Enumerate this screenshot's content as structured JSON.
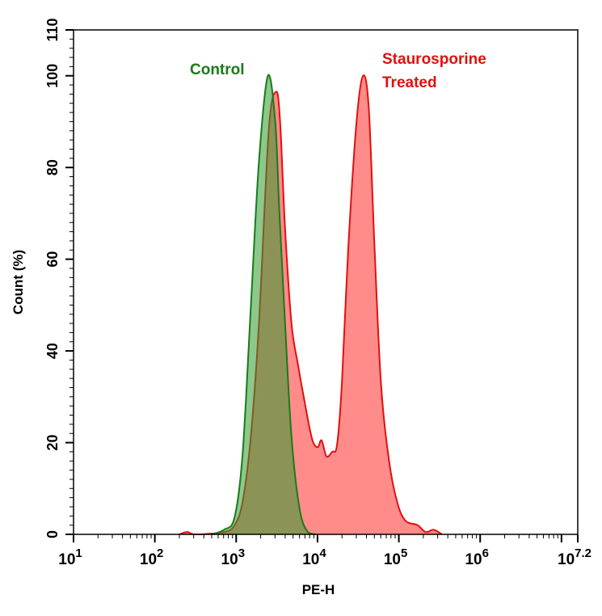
{
  "chart_data": {
    "type": "area",
    "title": "",
    "xlabel": "PE-H",
    "ylabel": "Count  (%)",
    "x_scale": "log10",
    "xlim_exponent": [
      1,
      7.2
    ],
    "x_ticks": [
      {
        "base": "10",
        "exp": "1",
        "value": 1
      },
      {
        "base": "10",
        "exp": "2",
        "value": 2
      },
      {
        "base": "10",
        "exp": "3",
        "value": 3
      },
      {
        "base": "10",
        "exp": "4",
        "value": 4
      },
      {
        "base": "10",
        "exp": "5",
        "value": 5
      },
      {
        "base": "10",
        "exp": "6",
        "value": 6
      },
      {
        "base": "10",
        "exp": "7.2",
        "value": 7.2
      }
    ],
    "ylim": [
      0,
      110
    ],
    "y_ticks": [
      "0",
      "20",
      "40",
      "60",
      "80",
      "100",
      "110"
    ],
    "grid": false,
    "series": [
      {
        "name": "Staurosporine Treated",
        "label_lines": [
          "Staurosporine",
          "Treated"
        ],
        "stroke": "#e01010",
        "fill": "#ff4d4d",
        "log10_x": [
          2.3,
          2.4,
          2.5,
          2.85,
          2.98,
          3.08,
          3.18,
          3.28,
          3.4,
          3.49,
          3.54,
          3.6,
          3.68,
          3.76,
          3.83,
          3.93,
          4.0,
          4.05,
          4.11,
          4.18,
          4.24,
          4.3,
          4.38,
          4.48,
          4.56,
          4.63,
          4.7,
          4.78,
          4.88,
          4.98,
          5.08,
          5.23,
          5.33,
          5.43,
          5.53
        ],
        "y": [
          0,
          0.5,
          0,
          0.5,
          2,
          7.2,
          21.3,
          46,
          88,
          96.5,
          90,
          67,
          46,
          37,
          30,
          21,
          19,
          20.5,
          17,
          18,
          19.5,
          33,
          63,
          90,
          100,
          93,
          63,
          33,
          16,
          7,
          3,
          2,
          0.5,
          1,
          0
        ]
      },
      {
        "name": "Control",
        "label_lines": [
          "Control"
        ],
        "stroke": "#1a7a1a",
        "fill": "#2e9a2e",
        "log10_x": [
          2.7,
          2.85,
          2.98,
          3.08,
          3.18,
          3.28,
          3.39,
          3.48,
          3.53,
          3.6,
          3.68,
          3.78,
          3.88,
          3.98
        ],
        "y": [
          0,
          1,
          3.7,
          17.8,
          49.6,
          81.3,
          100,
          90,
          70.7,
          46.4,
          21.3,
          5.5,
          0.5,
          0
        ]
      }
    ]
  }
}
